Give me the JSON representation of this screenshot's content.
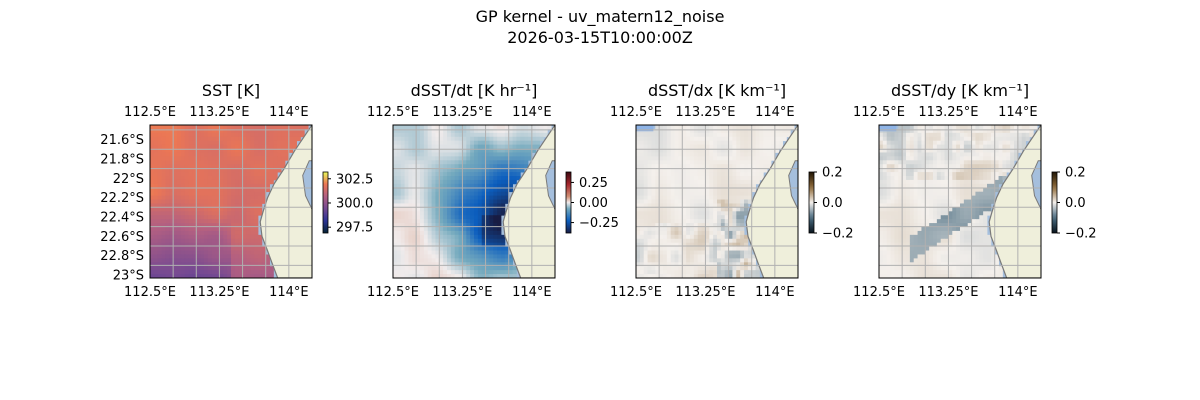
{
  "figure": {
    "title": "GP kernel - uv_matern12_noise",
    "subtitle": "2026-03-15T10:00:00Z"
  },
  "colors": {
    "ocean": "#a5bfdd",
    "land": "#efefdb",
    "coast": "#7a7a7a",
    "grid": "#b0b0b0",
    "nodata": "#8fb4e6"
  },
  "chart_data": [
    {
      "type": "heatmap",
      "title": "SST [K]",
      "field": "sst",
      "x_ticks": [
        "112.5°E",
        "113.25°E",
        "114°E"
      ],
      "x_tick_values": [
        112.5,
        113.25,
        114.0
      ],
      "y_ticks": [
        "21.6°S",
        "21.8°S",
        "22°S",
        "22.2°S",
        "22.4°S",
        "22.6°S",
        "22.8°S",
        "23°S"
      ],
      "y_tick_values": [
        -21.6,
        -21.8,
        -22.0,
        -22.2,
        -22.4,
        -22.6,
        -22.8,
        -23.0
      ],
      "xlim": [
        112.5,
        114.25
      ],
      "ylim": [
        -23.03,
        -21.45
      ],
      "colormap": "thermal",
      "colorbar": {
        "range": [
          296.9,
          303.2
        ],
        "ticks": [
          "302.5",
          "300.0",
          "297.5"
        ],
        "tick_values": [
          302.5,
          300.0,
          297.5
        ]
      },
      "value_range": [
        298.2,
        302.3
      ]
    },
    {
      "type": "heatmap",
      "title": "dSST/dt [K hr⁻¹]",
      "field": "dsst_dt",
      "x_ticks": [
        "112.5°E",
        "113.25°E",
        "114°E"
      ],
      "x_tick_values": [
        112.5,
        113.25,
        114.0
      ],
      "y_ticks": [],
      "xlim": [
        112.5,
        114.25
      ],
      "ylim": [
        -23.03,
        -21.45
      ],
      "colormap": "balance",
      "colorbar": {
        "range": [
          -0.38,
          0.38
        ],
        "ticks": [
          "0.25",
          "0.00",
          "−0.25"
        ],
        "tick_values": [
          0.25,
          0.0,
          -0.25
        ]
      },
      "value_range": [
        -0.38,
        0.3
      ]
    },
    {
      "type": "heatmap",
      "title": "dSST/dx [K km⁻¹]",
      "field": "dsst_dx",
      "x_ticks": [
        "112.5°E",
        "113.25°E",
        "114°E"
      ],
      "x_tick_values": [
        112.5,
        113.25,
        114.0
      ],
      "y_ticks": [],
      "xlim": [
        112.5,
        114.25
      ],
      "ylim": [
        -23.03,
        -21.45
      ],
      "colormap": "diff",
      "colorbar": {
        "range": [
          -0.2,
          0.2
        ],
        "ticks": [
          "0.2",
          "0.0",
          "−0.2"
        ],
        "tick_values": [
          0.2,
          0.0,
          -0.2
        ]
      },
      "value_range": [
        -0.06,
        0.06
      ]
    },
    {
      "type": "heatmap",
      "title": "dSST/dy [K km⁻¹]",
      "field": "dsst_dy",
      "x_ticks": [
        "112.5°E",
        "113.25°E",
        "114°E"
      ],
      "x_tick_values": [
        112.5,
        113.25,
        114.0
      ],
      "y_ticks": [],
      "xlim": [
        112.5,
        114.25
      ],
      "ylim": [
        -23.03,
        -21.45
      ],
      "colormap": "diff",
      "colorbar": {
        "range": [
          -0.2,
          0.2
        ],
        "ticks": [
          "0.2",
          "0.0",
          "−0.2"
        ],
        "tick_values": [
          0.2,
          0.0,
          -0.2
        ]
      },
      "value_range": [
        -0.07,
        0.06
      ]
    }
  ]
}
